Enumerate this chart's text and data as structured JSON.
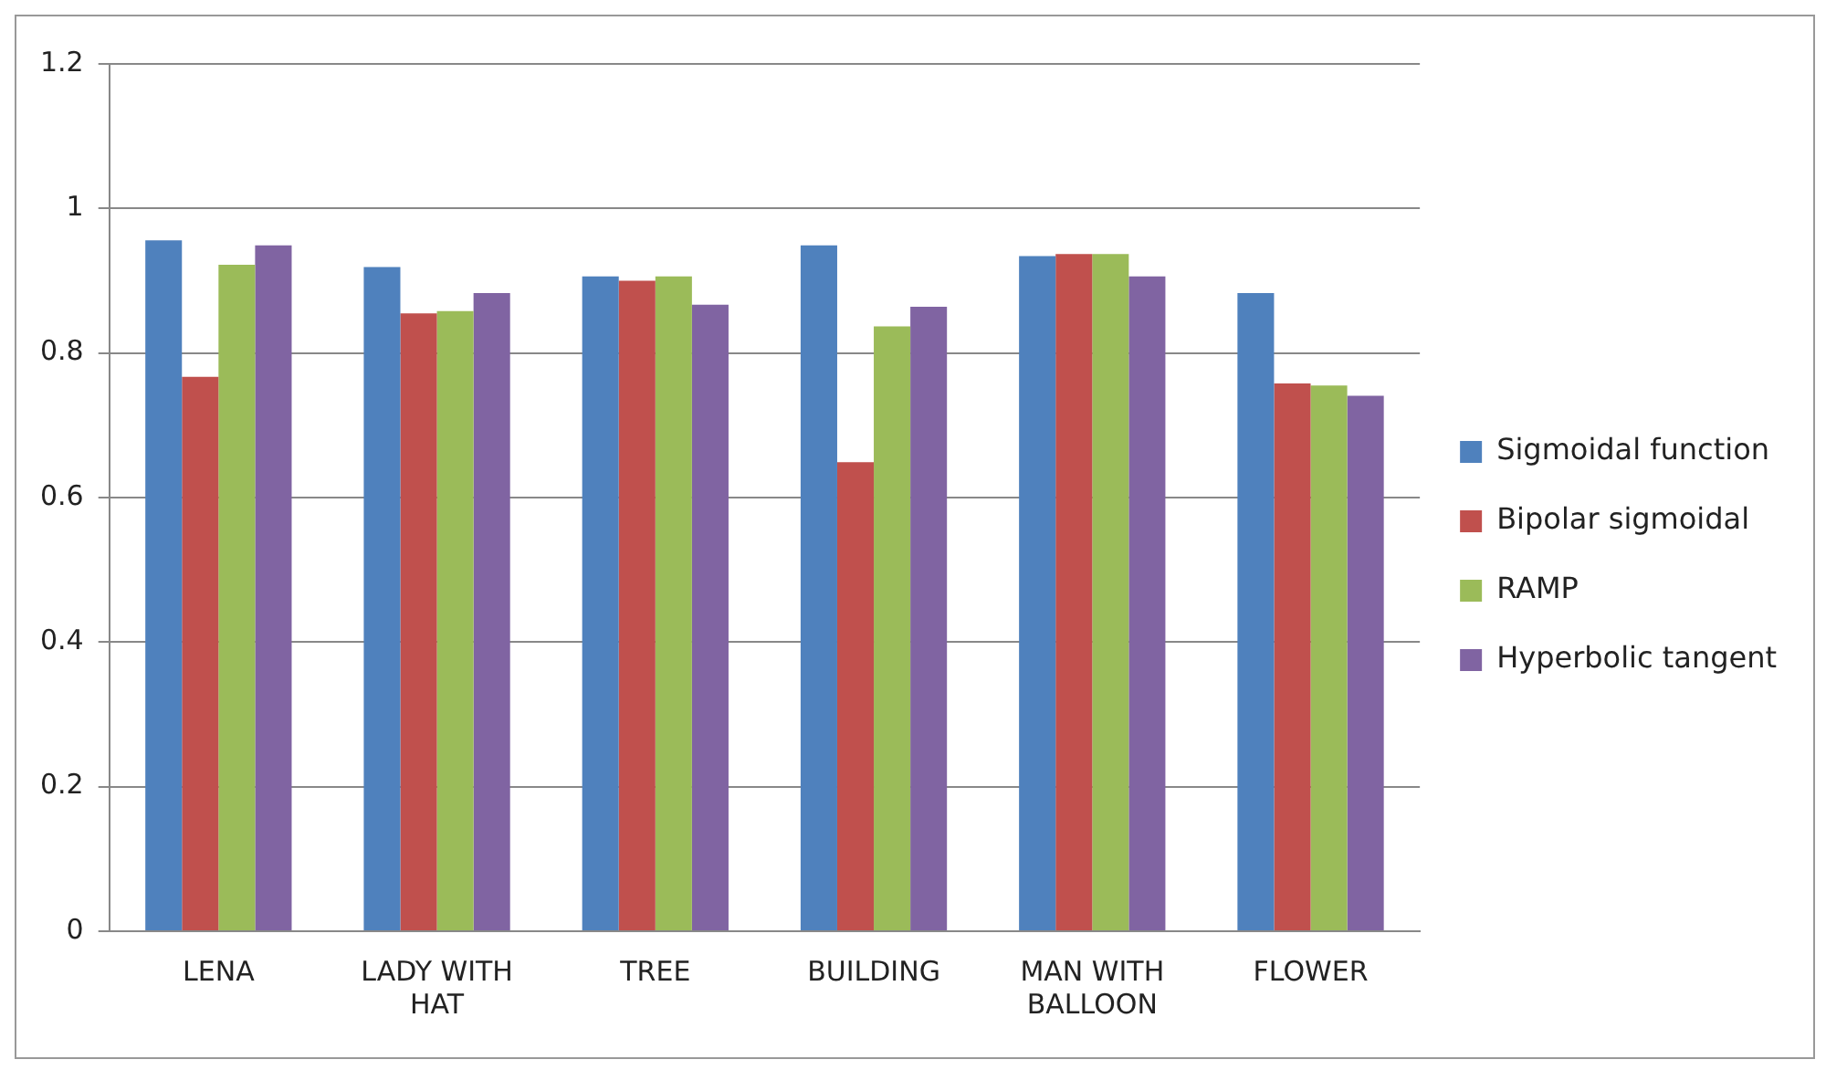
{
  "chart_data": {
    "type": "bar",
    "categories": [
      "LENA",
      "LADY WITH HAT",
      "TREE",
      "BUILDING",
      "MAN WITH BALLOON",
      "FLOWER"
    ],
    "series": [
      {
        "name": "Sigmoidal function",
        "color": "#4f81bd",
        "values": [
          0.956,
          0.919,
          0.906,
          0.949,
          0.934,
          0.883
        ]
      },
      {
        "name": "Bipolar sigmoidal",
        "color": "#c0504d",
        "values": [
          0.767,
          0.855,
          0.9,
          0.649,
          0.937,
          0.758
        ]
      },
      {
        "name": "RAMP",
        "color": "#9bbb59",
        "values": [
          0.922,
          0.858,
          0.906,
          0.837,
          0.937,
          0.755
        ]
      },
      {
        "name": "Hyperbolic tangent",
        "color": "#8064a2",
        "values": [
          0.949,
          0.883,
          0.867,
          0.864,
          0.906,
          0.741
        ]
      }
    ],
    "ylim": [
      0,
      1.2
    ],
    "yticks": [
      0,
      0.2,
      0.4,
      0.6,
      0.8,
      1,
      1.2
    ],
    "grid": "y",
    "legend": "right"
  }
}
